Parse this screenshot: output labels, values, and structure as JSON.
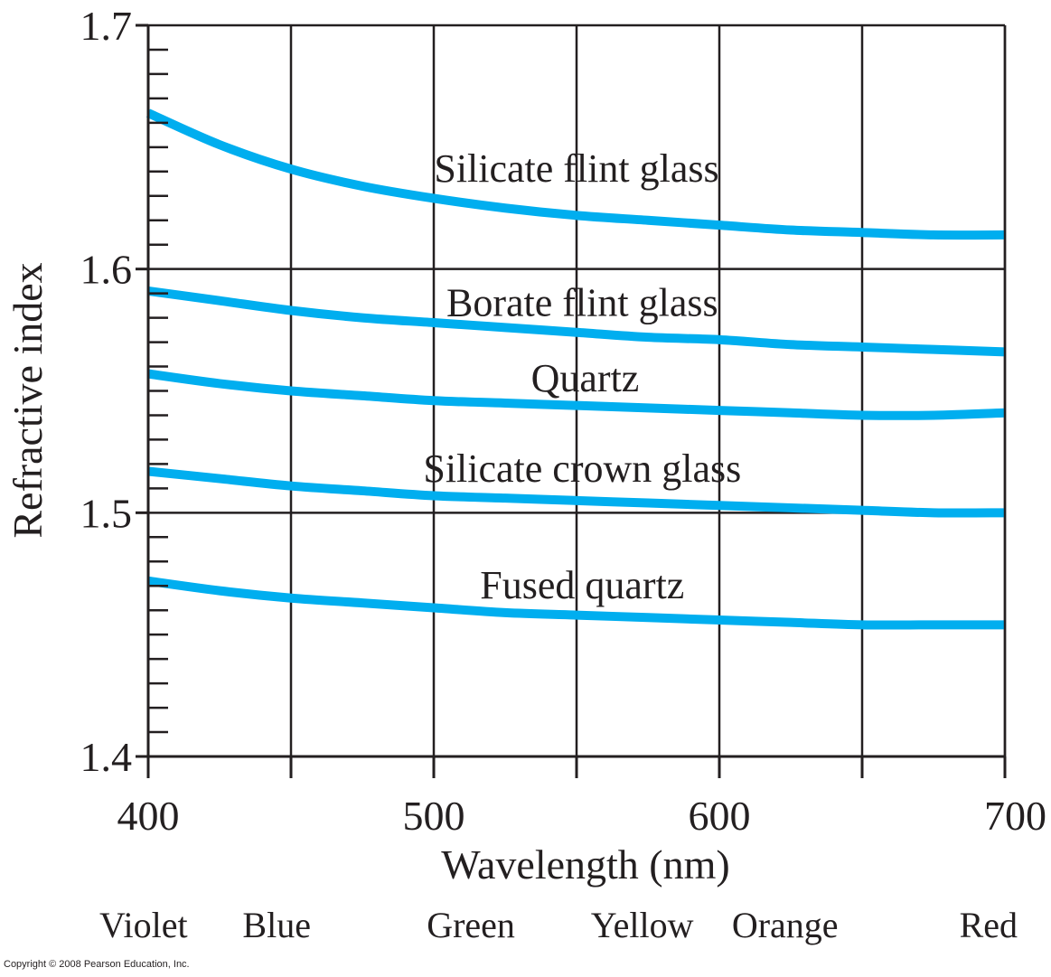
{
  "colors": {
    "curve": "#00aeef",
    "grid": "#231f20",
    "text": "#231f20"
  },
  "chart_data": {
    "type": "line",
    "title": "",
    "xlabel": "Wavelength (nm)",
    "ylabel": "Refractive index",
    "xlim": [
      400,
      700
    ],
    "ylim": [
      1.4,
      1.7
    ],
    "grid": true,
    "legend": "inline labels on curves",
    "x_ticks": [
      {
        "value": 400,
        "label": "400"
      },
      {
        "value": 500,
        "label": "500"
      },
      {
        "value": 600,
        "label": "600"
      },
      {
        "value": 700,
        "label": "700"
      }
    ],
    "y_ticks": [
      {
        "value": 1.4,
        "label": "1.4"
      },
      {
        "value": 1.5,
        "label": "1.5"
      },
      {
        "value": 1.6,
        "label": "1.6"
      },
      {
        "value": 1.7,
        "label": "1.7"
      }
    ],
    "color_bands": [
      {
        "label": "Violet",
        "x": 400
      },
      {
        "label": "Blue",
        "x": 445
      },
      {
        "label": "Green",
        "x": 513
      },
      {
        "label": "Yellow",
        "x": 573
      },
      {
        "label": "Orange",
        "x": 623
      },
      {
        "label": "Red",
        "x": 685
      }
    ],
    "x": [
      400,
      425,
      450,
      475,
      500,
      525,
      550,
      575,
      600,
      625,
      650,
      675,
      700
    ],
    "series": [
      {
        "name": "Silicate flint glass",
        "label_anchor": [
          550,
          1.641
        ],
        "values": [
          1.664,
          1.651,
          1.641,
          1.634,
          1.629,
          1.625,
          1.622,
          1.62,
          1.618,
          1.616,
          1.615,
          1.614,
          1.614
        ]
      },
      {
        "name": "Borate flint glass",
        "label_anchor": [
          552,
          1.586
        ],
        "values": [
          1.591,
          1.587,
          1.583,
          1.58,
          1.578,
          1.576,
          1.574,
          1.572,
          1.571,
          1.569,
          1.568,
          1.567,
          1.566
        ]
      },
      {
        "name": "Quartz",
        "label_anchor": [
          553,
          1.555
        ],
        "values": [
          1.557,
          1.553,
          1.55,
          1.548,
          1.546,
          1.545,
          1.544,
          1.543,
          1.542,
          1.541,
          1.54,
          1.54,
          1.541
        ]
      },
      {
        "name": "Silicate crown glass",
        "label_anchor": [
          552,
          1.518
        ],
        "values": [
          1.517,
          1.514,
          1.511,
          1.509,
          1.507,
          1.506,
          1.505,
          1.504,
          1.503,
          1.502,
          1.501,
          1.5,
          1.5
        ]
      },
      {
        "name": "Fused quartz",
        "label_anchor": [
          552,
          1.47
        ],
        "values": [
          1.472,
          1.468,
          1.465,
          1.463,
          1.461,
          1.459,
          1.458,
          1.457,
          1.456,
          1.455,
          1.454,
          1.454,
          1.454
        ]
      }
    ]
  },
  "footer": {
    "copyright": "Copyright © 2008 Pearson Education, Inc."
  }
}
